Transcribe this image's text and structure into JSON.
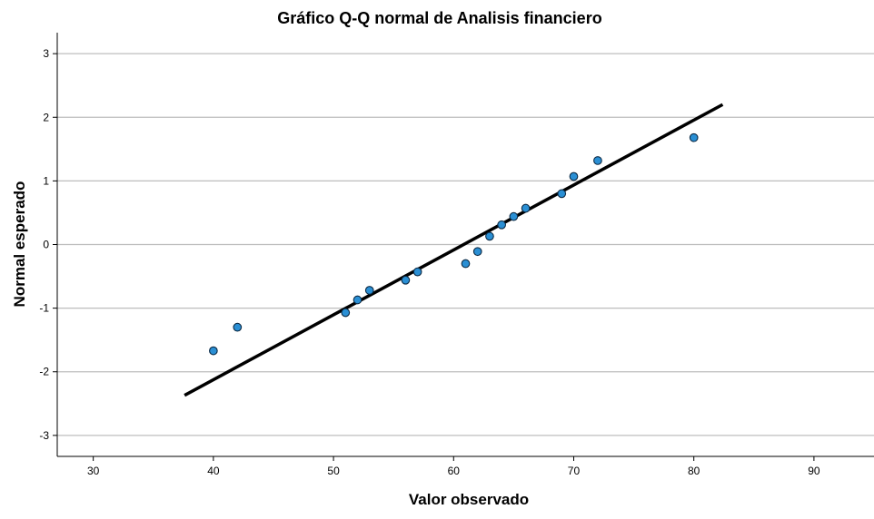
{
  "chart_data": {
    "type": "scatter",
    "title": "Gráfico Q-Q normal de Analisis financiero",
    "xlabel": "Valor observado",
    "ylabel": "Normal esperado",
    "xlim": [
      27,
      95
    ],
    "ylim": [
      -3.33,
      3.33
    ],
    "x_ticks": [
      30,
      40,
      50,
      60,
      70,
      80,
      90
    ],
    "y_ticks": [
      3,
      2,
      1,
      0,
      -1,
      -2,
      -3
    ],
    "grid": "horizontal",
    "points": [
      {
        "x": 40,
        "y": -1.67
      },
      {
        "x": 42,
        "y": -1.3
      },
      {
        "x": 51,
        "y": -1.07
      },
      {
        "x": 52,
        "y": -0.87
      },
      {
        "x": 53,
        "y": -0.72
      },
      {
        "x": 56,
        "y": -0.56
      },
      {
        "x": 57,
        "y": -0.43
      },
      {
        "x": 61,
        "y": -0.3
      },
      {
        "x": 62,
        "y": -0.11
      },
      {
        "x": 63,
        "y": 0.13
      },
      {
        "x": 64,
        "y": 0.31
      },
      {
        "x": 65,
        "y": 0.44
      },
      {
        "x": 66,
        "y": 0.57
      },
      {
        "x": 69,
        "y": 0.8
      },
      {
        "x": 70,
        "y": 1.07
      },
      {
        "x": 72,
        "y": 1.32
      },
      {
        "x": 80,
        "y": 1.68
      }
    ],
    "reference_line": {
      "x1": 37.6,
      "y1": -2.37,
      "x2": 82.4,
      "y2": 2.2
    },
    "colors": {
      "point_fill": "#2a8fd4",
      "point_stroke": "#0b2a45",
      "line": "#000000",
      "grid": "#bdbdbd",
      "frame": "#000000"
    }
  }
}
